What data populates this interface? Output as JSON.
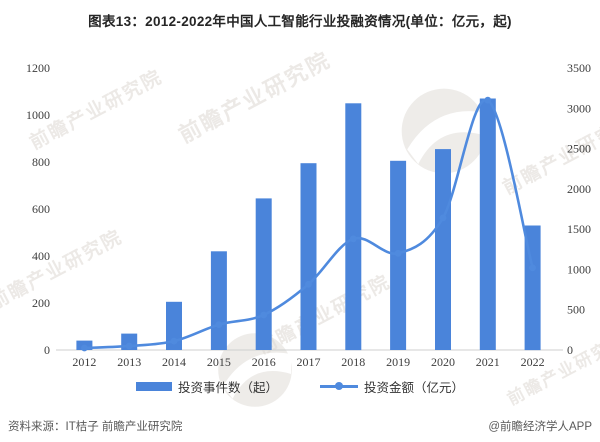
{
  "title": "图表13：2012-2022年中国人工智能行业投融资情况(单位：亿元，起)",
  "chart_data": {
    "type": "bar",
    "subtype": "bar+line dual axis",
    "title": "图表13：2012-2022年中国人工智能行业投融资情况(单位：亿元，起)",
    "categories": [
      "2012",
      "2013",
      "2014",
      "2015",
      "2016",
      "2017",
      "2018",
      "2019",
      "2020",
      "2021",
      "2022"
    ],
    "series": [
      {
        "name": "投资事件数（起）",
        "type": "bar",
        "axis": "left",
        "color": "#4a84da",
        "values": [
          40,
          70,
          205,
          420,
          645,
          795,
          1050,
          805,
          855,
          1070,
          530
        ]
      },
      {
        "name": "投资金额（亿元）",
        "type": "line",
        "axis": "right",
        "color": "#4f8ade",
        "values": [
          25,
          50,
          110,
          315,
          435,
          815,
          1380,
          1200,
          1640,
          3100,
          1020
        ]
      }
    ],
    "left_axis": {
      "min": 0,
      "max": 1200,
      "step": 200
    },
    "right_axis": {
      "min": 0,
      "max": 3500,
      "step": 500
    },
    "grid": false,
    "legend_position": "bottom"
  },
  "footer": {
    "source": "资料来源：IT桔子 前瞻产业研究院",
    "credit": "@前瞻经济学人APP"
  },
  "watermark": {
    "text": "前瞻产业研究院",
    "subtext": "中国产业咨询领导者"
  }
}
